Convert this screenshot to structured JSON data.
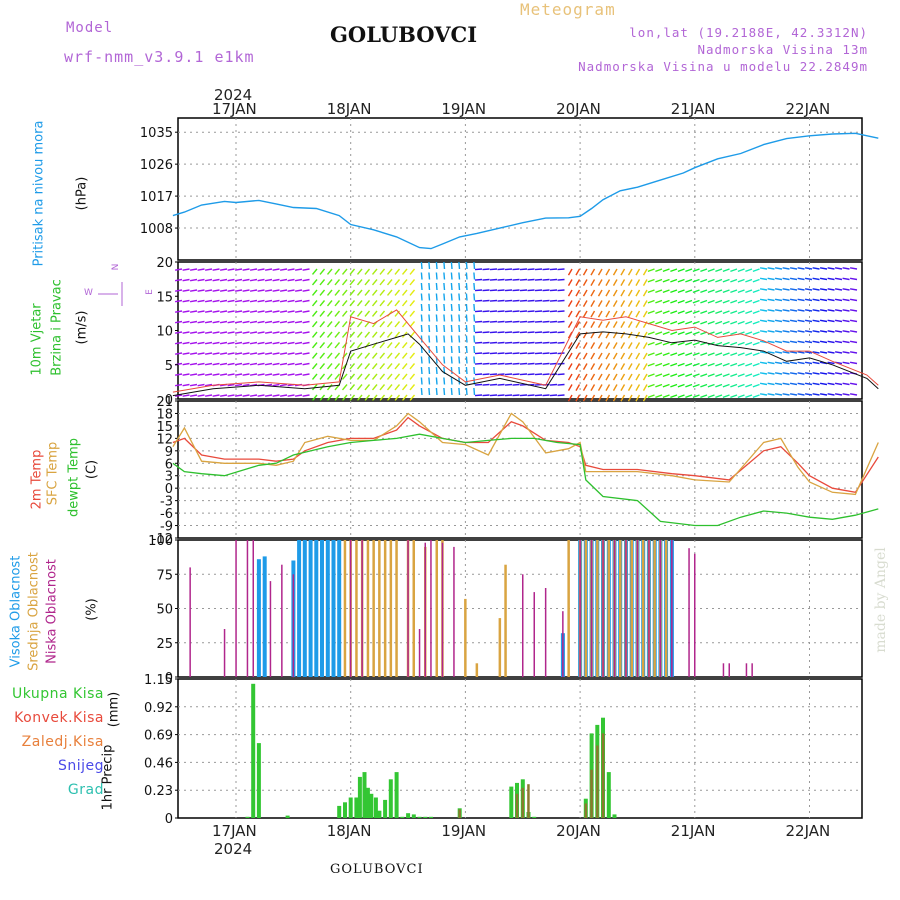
{
  "header": {
    "model_label": "Model",
    "model_name": "wrf-nmm_v3.9.1 e1km",
    "station": "GOLUBOVCI",
    "meteogram": "Meteogram",
    "lonlat": "lon,lat (19.2188E, 42.3312N)",
    "altitude": "Nadmorska Visina 13m",
    "altitude_model": "Nadmorska Visina u modelu 22.2849m"
  },
  "footer": {
    "station": "GOLUBOVCI",
    "watermark": "made by Angel"
  },
  "colors": {
    "pressure": "#1e9be8",
    "temp2m": "#e84a3c",
    "sfc": "#d9a441",
    "dewpt": "#2ec02e",
    "high_cloud": "#1e9be8",
    "mid_cloud": "#d9a441",
    "low_cloud": "#b0268c",
    "precip_total": "#33c633",
    "precip_conv": "#e84a3c",
    "precip_grid": "#8a7a2e"
  },
  "chart_data": [
    {
      "type": "line",
      "panel": "pressure",
      "ylabel_main": "Pritisak na nivou mora",
      "ylabel_unit": "(hPa)",
      "yticks": [
        "1035",
        "1026",
        "1017",
        "1008"
      ],
      "ylim": [
        999,
        1039
      ],
      "x_days": [
        "17JAN",
        "18JAN",
        "19JAN",
        "20JAN",
        "21JAN",
        "22JAN"
      ],
      "x_year": "2024",
      "x": [
        -0.55,
        -0.45,
        -0.3,
        -0.1,
        0,
        0.2,
        0.35,
        0.5,
        0.7,
        0.9,
        1.0,
        1.2,
        1.4,
        1.6,
        1.7,
        1.8,
        1.95,
        2.1,
        2.3,
        2.5,
        2.7,
        2.9,
        3.0,
        3.1,
        3.2,
        3.35,
        3.5,
        3.7,
        3.9,
        4.0,
        4.2,
        4.4,
        4.6,
        4.8,
        5.0,
        5.2,
        5.4,
        5.6
      ],
      "y": [
        1011.5,
        1012.5,
        1014.5,
        1015.5,
        1015.2,
        1015.8,
        1014.8,
        1013.8,
        1013.5,
        1011.5,
        1009,
        1007.5,
        1005.5,
        1002.5,
        1002.2,
        1003.5,
        1005.5,
        1006.5,
        1008,
        1009.5,
        1010.8,
        1010.9,
        1011.3,
        1013.5,
        1016,
        1018.5,
        1019.5,
        1021.5,
        1023.5,
        1025,
        1027.5,
        1029,
        1031.5,
        1033.2,
        1034,
        1034.5,
        1034.7,
        1033.3
      ]
    },
    {
      "type": "line",
      "panel": "wind",
      "ylabel_main": "10m Vjetar",
      "ylabel_main2": "Brzina i Pravac",
      "ylabel_unit": "(m/s)",
      "compass_n": "N",
      "compass_e": "E",
      "compass_w": "W",
      "yticks": [
        "20",
        "15",
        "10",
        "5",
        "0"
      ],
      "ylim": [
        0,
        20
      ],
      "series": [
        {
          "key": "speed",
          "x": [
            -0.55,
            -0.2,
            0.2,
            0.6,
            0.9,
            1.0,
            1.2,
            1.4,
            1.5,
            1.6,
            1.8,
            2.0,
            2.3,
            2.7,
            3.0,
            3.2,
            3.4,
            3.6,
            3.8,
            4.0,
            4.2,
            4.4,
            4.6,
            4.8,
            5.0,
            5.2,
            5.5,
            5.6
          ],
          "y": [
            0.5,
            1.5,
            2,
            1.5,
            2,
            7,
            8,
            9,
            9.5,
            8,
            4,
            2,
            3,
            1.5,
            9.5,
            9.8,
            9.5,
            9,
            8.2,
            8.6,
            7.8,
            7.5,
            7.0,
            5.5,
            6,
            5,
            3,
            1.5
          ]
        },
        {
          "key": "gust",
          "x": [
            -0.55,
            -0.2,
            0.2,
            0.6,
            0.9,
            1.0,
            1.2,
            1.4,
            1.6,
            1.8,
            2.0,
            2.3,
            2.7,
            3.0,
            3.2,
            3.4,
            3.6,
            3.8,
            4.0,
            4.2,
            4.4,
            4.6,
            4.8,
            5.0,
            5.2,
            5.5,
            5.6
          ],
          "y": [
            1,
            2,
            2.5,
            2,
            2.5,
            12,
            11,
            13,
            9,
            5,
            2.5,
            3.5,
            2,
            12,
            11.5,
            12,
            11,
            10,
            10.5,
            9,
            9.5,
            8.5,
            7,
            7,
            5.5,
            3.5,
            2
          ]
        }
      ]
    },
    {
      "type": "line",
      "panel": "temperature",
      "ylabel_main": "2m Temp",
      "ylabel_main2": "SFC Temp",
      "ylabel_main3": "dewpt Temp",
      "ylabel_unit": "(C)",
      "yticks": [
        "21",
        "18",
        "15",
        "12",
        "9",
        "6",
        "3",
        "0",
        "-3",
        "-6",
        "-9",
        "-12"
      ],
      "ylim": [
        -12,
        21
      ],
      "series": [
        {
          "name": "2m Temp",
          "key": "temp2m",
          "x": [
            -0.55,
            -0.45,
            -0.3,
            -0.1,
            0.2,
            0.35,
            0.5,
            0.6,
            0.8,
            1.0,
            1.2,
            1.4,
            1.5,
            1.6,
            1.8,
            2.0,
            2.2,
            2.4,
            2.5,
            2.7,
            2.9,
            3.0,
            3.05,
            3.2,
            3.5,
            3.8,
            4.0,
            4.3,
            4.6,
            4.75,
            4.9,
            5.0,
            5.2,
            5.4,
            5.6
          ],
          "y": [
            11,
            12,
            8,
            7,
            7,
            6.5,
            7,
            9,
            11,
            12,
            12,
            14,
            17,
            15,
            12,
            11,
            11,
            16,
            15,
            11.5,
            11,
            10,
            5.5,
            4.5,
            4.5,
            3.5,
            3,
            2,
            9,
            10,
            6,
            3,
            0,
            -1,
            7.5
          ]
        },
        {
          "name": "SFC Temp",
          "key": "sfc",
          "x": [
            -0.55,
            -0.45,
            -0.3,
            -0.1,
            0.2,
            0.35,
            0.5,
            0.6,
            0.8,
            1.0,
            1.2,
            1.4,
            1.5,
            1.6,
            1.8,
            2.0,
            2.2,
            2.4,
            2.5,
            2.7,
            2.9,
            3.0,
            3.05,
            3.2,
            3.5,
            3.8,
            4.0,
            4.3,
            4.6,
            4.75,
            4.9,
            5.0,
            5.2,
            5.4,
            5.6
          ],
          "y": [
            10,
            14.5,
            6.5,
            6,
            6,
            5.5,
            6.5,
            11,
            12.5,
            11.5,
            11.5,
            15,
            18,
            16,
            11,
            10.5,
            8,
            18,
            16,
            8.5,
            9.5,
            11,
            4,
            4,
            4,
            3,
            2,
            1.5,
            11,
            12,
            5,
            1.5,
            -1,
            -1.5,
            11
          ]
        },
        {
          "name": "dewpt Temp",
          "key": "dewpt",
          "x": [
            -0.55,
            -0.45,
            -0.3,
            -0.1,
            0.2,
            0.35,
            0.5,
            0.8,
            1.0,
            1.2,
            1.4,
            1.6,
            1.8,
            2.0,
            2.2,
            2.4,
            2.6,
            2.8,
            3.0,
            3.05,
            3.2,
            3.5,
            3.7,
            4.0,
            4.2,
            4.4,
            4.6,
            4.8,
            5.0,
            5.2,
            5.4,
            5.6
          ],
          "y": [
            6,
            4,
            3.5,
            3,
            5.5,
            6,
            8,
            10,
            11,
            11.5,
            12,
            13,
            12,
            11,
            11.5,
            12,
            12,
            11,
            10.5,
            2,
            -2,
            -3,
            -8,
            -9,
            -9,
            -7,
            -5.5,
            -6,
            -7,
            -7.5,
            -6.5,
            -5
          ]
        }
      ]
    },
    {
      "type": "bar",
      "panel": "cloud",
      "ylabel_main": "Visoka Oblacnost",
      "ylabel_main2": "Srednja Oblacnost",
      "ylabel_main3": "Niska Oblacnost",
      "ylabel_unit": "(%)",
      "yticks": [
        "100",
        "75",
        "50",
        "25",
        "0"
      ],
      "ylim": [
        0,
        100
      ],
      "series": [
        {
          "name": "Visoka Oblacnost",
          "key": "high",
          "x": [
            0.2,
            0.25,
            0.5,
            0.55,
            0.6,
            0.65,
            0.7,
            0.75,
            0.8,
            0.85,
            0.9,
            2.85,
            3.0,
            3.05,
            3.1,
            3.15,
            3.2,
            3.25,
            3.3,
            3.35,
            3.4,
            3.45,
            3.5,
            3.55,
            3.6,
            3.65,
            3.7,
            3.75,
            3.8
          ],
          "y": [
            86,
            88,
            85,
            100,
            100,
            100,
            100,
            100,
            100,
            100,
            100,
            32,
            100,
            100,
            100,
            100,
            100,
            100,
            100,
            100,
            100,
            100,
            100,
            100,
            100,
            100,
            100,
            100,
            100
          ]
        },
        {
          "name": "Srednja Oblacnost",
          "key": "mid",
          "x": [
            0.95,
            1.0,
            1.05,
            1.1,
            1.15,
            1.2,
            1.25,
            1.3,
            1.35,
            1.4,
            1.5,
            1.55,
            1.65,
            1.75,
            1.8,
            2.0,
            2.1,
            2.3,
            2.35,
            2.9,
            3.0,
            3.05,
            3.1,
            3.15,
            3.2,
            3.25,
            3.3,
            3.35,
            3.4,
            3.45,
            3.5,
            3.55,
            3.6,
            3.65,
            3.7,
            3.75
          ],
          "y": [
            100,
            100,
            100,
            100,
            100,
            100,
            100,
            100,
            100,
            100,
            100,
            100,
            95,
            100,
            100,
            57,
            10,
            43,
            82,
            100,
            100,
            100,
            100,
            100,
            100,
            100,
            100,
            100,
            100,
            100,
            100,
            100,
            100,
            100,
            100,
            100
          ]
        },
        {
          "name": "Niska Oblacnost",
          "key": "low",
          "x": [
            -0.4,
            -0.1,
            0.0,
            0.1,
            0.15,
            0.3,
            0.4,
            0.5,
            1.0,
            1.1,
            1.5,
            1.6,
            1.65,
            1.7,
            1.8,
            1.9,
            2.5,
            2.6,
            2.7,
            2.85,
            3.0,
            3.1,
            3.2,
            3.3,
            3.4,
            3.5,
            3.6,
            3.7,
            3.8,
            3.95,
            4.0,
            4.25,
            4.3,
            4.45,
            4.5
          ],
          "y": [
            80,
            35,
            100,
            100,
            100,
            70,
            82,
            75,
            100,
            100,
            100,
            35,
            98,
            100,
            98,
            95,
            75,
            62,
            65,
            48,
            100,
            100,
            100,
            100,
            100,
            100,
            100,
            100,
            100,
            94,
            90,
            10,
            10,
            10,
            10
          ]
        }
      ]
    },
    {
      "type": "bar",
      "panel": "precip",
      "ylabel_main": "1hr Precip",
      "ylabel_unit": "(mm)",
      "yticks": [
        "1.15",
        "0.92",
        "0.69",
        "0.46",
        "0.23",
        "0"
      ],
      "ylim": [
        0,
        1.15
      ],
      "legend": [
        {
          "label": "Ukupna Kisa",
          "key": "precip_total"
        },
        {
          "label": "Konvek.Kisa",
          "key": "precip_conv"
        },
        {
          "label": "Zaledj.Kisa",
          "key": "zaledj"
        },
        {
          "label": "Snijeg",
          "key": "snijeg"
        },
        {
          "label": "Grad",
          "key": "grad"
        }
      ],
      "series": [
        {
          "name": "Ukupna Kisa",
          "key": "precip_total",
          "x": [
            0.1,
            0.15,
            0.2,
            0.45,
            0.9,
            0.95,
            1.0,
            1.05,
            1.08,
            1.12,
            1.15,
            1.18,
            1.22,
            1.25,
            1.3,
            1.35,
            1.4,
            1.45,
            1.5,
            1.55,
            1.6,
            1.65,
            1.7,
            1.95,
            2.4,
            2.45,
            2.5,
            2.55,
            2.6,
            3.05,
            3.1,
            3.15,
            3.2,
            3.25,
            3.3
          ],
          "y": [
            0.01,
            1.11,
            0.62,
            0.02,
            0.1,
            0.13,
            0.17,
            0.17,
            0.34,
            0.38,
            0.25,
            0.2,
            0.17,
            0.06,
            0.15,
            0.32,
            0.38,
            0.01,
            0.04,
            0.03,
            0.01,
            0.01,
            0.01,
            0.08,
            0.26,
            0.29,
            0.32,
            0.05,
            0.01,
            0.16,
            0.7,
            0.77,
            0.83,
            0.38,
            0.03
          ]
        },
        {
          "name": "Konvek.Kisa",
          "key": "precip_conv",
          "x": [
            1.95,
            2.45,
            2.5,
            2.55,
            3.05,
            3.1,
            3.15,
            3.2
          ],
          "y": [
            0.07,
            0.2,
            0.25,
            0.28,
            0.12,
            0.4,
            0.6,
            0.7
          ]
        }
      ]
    }
  ]
}
